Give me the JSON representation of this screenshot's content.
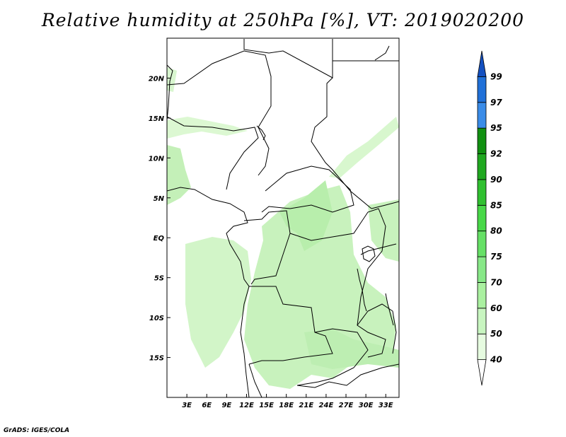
{
  "title": "Relative humidity at 250hPa [%], VT: 2019020200",
  "credit": "GrADS: IGES/COLA",
  "map": {
    "lon_range": [
      0,
      35
    ],
    "lat_range": [
      -20,
      25
    ],
    "lon_ticks": [
      {
        "value": 3,
        "label": "3E"
      },
      {
        "value": 6,
        "label": "6E"
      },
      {
        "value": 9,
        "label": "9E"
      },
      {
        "value": 12,
        "label": "12E"
      },
      {
        "value": 15,
        "label": "15E"
      },
      {
        "value": 18,
        "label": "18E"
      },
      {
        "value": 21,
        "label": "21E"
      },
      {
        "value": 24,
        "label": "24E"
      },
      {
        "value": 27,
        "label": "27E"
      },
      {
        "value": 30,
        "label": "30E"
      },
      {
        "value": 33,
        "label": "33E"
      }
    ],
    "lat_ticks": [
      {
        "value": 20,
        "label": "20N"
      },
      {
        "value": 15,
        "label": "15N"
      },
      {
        "value": 10,
        "label": "10N"
      },
      {
        "value": 5,
        "label": "5N"
      },
      {
        "value": 0,
        "label": "EQ"
      },
      {
        "value": -5,
        "label": "5S"
      },
      {
        "value": -10,
        "label": "10S"
      },
      {
        "value": -15,
        "label": "15S"
      }
    ]
  },
  "colorbar": {
    "levels": [
      "40",
      "50",
      "60",
      "70",
      "75",
      "80",
      "85",
      "90",
      "92",
      "95",
      "97",
      "99"
    ],
    "colors": [
      "#ffffff",
      "#e6fbe0",
      "#c8f5c0",
      "#aaf0a0",
      "#88e888",
      "#66e066",
      "#48d848",
      "#30c030",
      "#20a820",
      "#119011",
      "#3a8ce8",
      "#2070d8",
      "#1450c0"
    ]
  }
}
